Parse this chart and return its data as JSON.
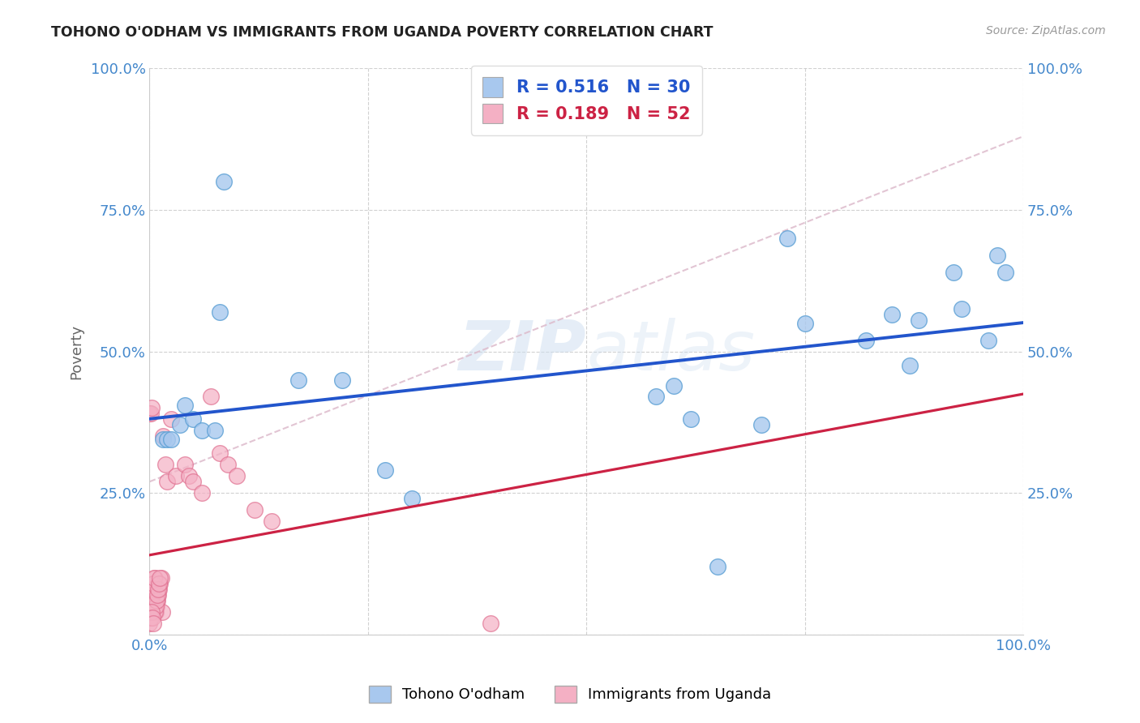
{
  "title": "TOHONO O'ODHAM VS IMMIGRANTS FROM UGANDA POVERTY CORRELATION CHART",
  "source": "Source: ZipAtlas.com",
  "ylabel": "Poverty",
  "background_color": "#ffffff",
  "grid_color": "#cccccc",
  "blue_color": "#a8c8ee",
  "blue_edge": "#5a9fd4",
  "pink_color": "#f4b0c4",
  "pink_edge": "#e07090",
  "blue_line_color": "#2255cc",
  "pink_line_color": "#cc2244",
  "dashed_color": "#ddbbcc",
  "tick_color": "#4488cc",
  "legend_R_blue": "0.516",
  "legend_N_blue": "30",
  "legend_R_pink": "0.189",
  "legend_N_pink": "52",
  "watermark": "ZIPAtlas",
  "blue_x": [
    0.08,
    0.015,
    0.02,
    0.025,
    0.035,
    0.04,
    0.05,
    0.06,
    0.075,
    0.085,
    0.17,
    0.22,
    0.27,
    0.3,
    0.58,
    0.6,
    0.62,
    0.65,
    0.7,
    0.73,
    0.75,
    0.82,
    0.85,
    0.87,
    0.88,
    0.92,
    0.93,
    0.96,
    0.97,
    0.98
  ],
  "blue_y": [
    0.57,
    0.345,
    0.345,
    0.345,
    0.37,
    0.405,
    0.38,
    0.36,
    0.36,
    0.8,
    0.45,
    0.45,
    0.29,
    0.24,
    0.42,
    0.44,
    0.38,
    0.12,
    0.37,
    0.7,
    0.55,
    0.52,
    0.565,
    0.475,
    0.555,
    0.64,
    0.575,
    0.52,
    0.67,
    0.64
  ],
  "pink_x": [
    0.0,
    0.001,
    0.002,
    0.003,
    0.004,
    0.005,
    0.006,
    0.007,
    0.008,
    0.009,
    0.01,
    0.011,
    0.012,
    0.013,
    0.014,
    0.0,
    0.001,
    0.002,
    0.003,
    0.004,
    0.005,
    0.006,
    0.007,
    0.008,
    0.009,
    0.01,
    0.011,
    0.012,
    0.0,
    0.001,
    0.002,
    0.003,
    0.004,
    0.015,
    0.018,
    0.02,
    0.025,
    0.03,
    0.04,
    0.045,
    0.05,
    0.06,
    0.07,
    0.08,
    0.09,
    0.1,
    0.12,
    0.14,
    0.0,
    0.001,
    0.002,
    0.39
  ],
  "pink_y": [
    0.04,
    0.05,
    0.06,
    0.07,
    0.08,
    0.09,
    0.1,
    0.04,
    0.05,
    0.06,
    0.07,
    0.08,
    0.09,
    0.1,
    0.04,
    0.05,
    0.06,
    0.07,
    0.08,
    0.09,
    0.1,
    0.04,
    0.05,
    0.06,
    0.07,
    0.08,
    0.09,
    0.1,
    0.02,
    0.03,
    0.04,
    0.03,
    0.02,
    0.35,
    0.3,
    0.27,
    0.38,
    0.28,
    0.3,
    0.28,
    0.27,
    0.25,
    0.42,
    0.32,
    0.3,
    0.28,
    0.22,
    0.2,
    0.39,
    0.39,
    0.4,
    0.02
  ]
}
